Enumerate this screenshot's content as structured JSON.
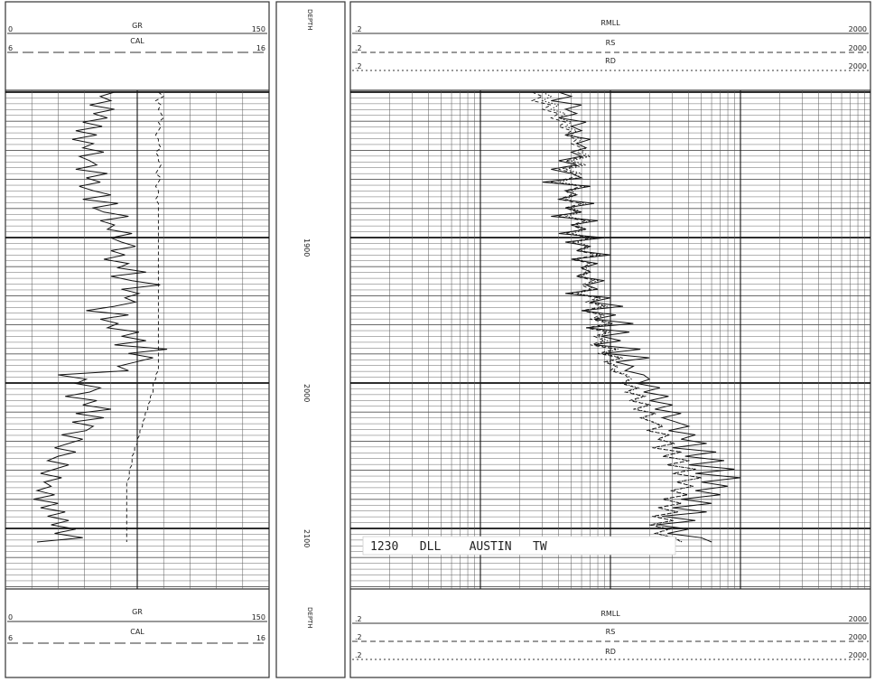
{
  "chart_data": {
    "type": "line",
    "depth_track": {
      "header_label": "DEPTH",
      "footer_label": "DEPTH",
      "depth_labels": [
        "1900",
        "2000",
        "2100"
      ]
    },
    "tracks": [
      {
        "name": "track-1",
        "scale": "linear",
        "curves": [
          {
            "name": "GR",
            "min_label": "0",
            "max_label": "150",
            "line_style": "solid",
            "values": [
              62,
              54,
              60,
              48,
              62,
              50,
              58,
              44,
              55,
              40,
              52,
              38,
              50,
              44,
              56,
              42,
              48,
              52,
              40,
              58,
              46,
              54,
              42,
              50,
              60,
              44,
              64,
              50,
              56,
              70,
              54,
              62,
              58,
              72,
              60,
              66,
              74,
              60,
              68,
              56,
              70,
              64,
              80,
              60,
              72,
              88,
              66,
              76,
              68,
              74,
              62,
              46,
              70,
              54,
              64,
              58,
              76,
              66,
              80,
              62,
              92,
              70,
              84,
              74,
              64,
              70,
              30,
              46,
              40,
              54,
              48,
              34,
              52,
              44,
              60,
              40,
              56,
              38,
              50,
              46,
              32,
              44,
              36,
              28,
              40,
              30,
              24,
              36,
              28,
              20,
              32,
              22,
              26,
              18,
              28,
              16,
              30,
              20,
              34,
              24,
              36,
              26,
              40,
              28,
              44,
              18
            ]
          },
          {
            "name": "CAL",
            "min_label": "6",
            "max_label": "16",
            "line_style": "dashed",
            "values": [
              11.8,
              12.0,
              11.7,
              11.9,
              11.8,
              11.9,
              12.0,
              11.8,
              11.9,
              11.8,
              11.7,
              11.8,
              11.8,
              11.9,
              11.7,
              11.8,
              11.8,
              11.9,
              11.8,
              11.7,
              11.9,
              11.8,
              11.7,
              11.8,
              11.8,
              11.7,
              11.8,
              11.8,
              11.8,
              11.8,
              11.8,
              11.8,
              11.8,
              11.8,
              11.8,
              11.8,
              11.8,
              11.8,
              11.8,
              11.8,
              11.8,
              11.8,
              11.8,
              11.8,
              11.8,
              11.8,
              11.8,
              11.8,
              11.8,
              11.8,
              11.8,
              11.8,
              11.8,
              11.8,
              11.8,
              11.8,
              11.8,
              11.8,
              11.8,
              11.8,
              11.8,
              11.8,
              11.8,
              11.8,
              11.8,
              11.8,
              11.7,
              11.7,
              11.6,
              11.6,
              11.6,
              11.5,
              11.5,
              11.4,
              11.4,
              11.3,
              11.3,
              11.2,
              11.2,
              11.1,
              11.1,
              11.0,
              11.0,
              10.9,
              10.9,
              10.8,
              10.8,
              10.8,
              10.7,
              10.7,
              10.7,
              10.6,
              10.6,
              10.6,
              10.6,
              10.6,
              10.6,
              10.6,
              10.6,
              10.6,
              10.6,
              10.6,
              10.6,
              10.6,
              10.6,
              10.6
            ]
          }
        ]
      },
      {
        "name": "track-2-3",
        "scale": "log",
        "decades": [
          0.2,
          2,
          20,
          200,
          2000
        ],
        "curves": [
          {
            "name": "RMLL",
            "min_label": ".2",
            "max_label": "2000",
            "line_style": "solid",
            "values": [
              8,
              10,
              7,
              12,
              9,
              11,
              8,
              13,
              10,
              12,
              9,
              14,
              11,
              13,
              10,
              12,
              8,
              11,
              7,
              10,
              12,
              6,
              14,
              9,
              11,
              8,
              15,
              9,
              12,
              7,
              16,
              10,
              13,
              8,
              18,
              9,
              14,
              11,
              20,
              10,
              16,
              12,
              14,
              11,
              18,
              13,
              16,
              9,
              20,
              14,
              25,
              12,
              22,
              15,
              30,
              13,
              28,
              17,
              24,
              15,
              34,
              18,
              40,
              22,
              30,
              26,
              36,
              40,
              32,
              48,
              36,
              56,
              40,
              60,
              44,
              70,
              50,
              64,
              80,
              56,
              90,
              70,
              110,
              60,
              130,
              75,
              150,
              80,
              180,
              90,
              200,
              100,
              160,
              90,
              140,
              70,
              120,
              60,
              110,
              50,
              90,
              45,
              80,
              55,
              100,
              120
            ]
          },
          {
            "name": "RS",
            "min_label": ".2",
            "max_label": "2000",
            "line_style": "dashed",
            "values": [
              5,
              6,
              5,
              7,
              6,
              8,
              7,
              9,
              8,
              10,
              9,
              11,
              10,
              12,
              11,
              13,
              9,
              12,
              8,
              11,
              10,
              7,
              12,
              9,
              10,
              8,
              12,
              9,
              11,
              8,
              13,
              10,
              12,
              9,
              14,
              10,
              13,
              11,
              16,
              10,
              14,
              12,
              13,
              11,
              15,
              12,
              14,
              10,
              16,
              13,
              18,
              12,
              17,
              14,
              20,
              13,
              19,
              15,
              18,
              14,
              22,
              16,
              24,
              18,
              22,
              20,
              26,
              28,
              24,
              32,
              26,
              36,
              28,
              40,
              30,
              44,
              34,
              42,
              50,
              38,
              56,
              46,
              62,
              42,
              70,
              50,
              80,
              54,
              90,
              60,
              100,
              64,
              86,
              58,
              78,
              50,
              70,
              46,
              66,
              42,
              60,
              40,
              56,
              44,
              62,
              70
            ]
          },
          {
            "name": "RD",
            "min_label": ".2",
            "max_label": "2000",
            "line_style": "dotted",
            "values": [
              6,
              7,
              6,
              8,
              7,
              9,
              8,
              10,
              9,
              11,
              10,
              12,
              11,
              13,
              12,
              14,
              10,
              13,
              9,
              12,
              11,
              8,
              13,
              10,
              11,
              9,
              13,
              10,
              12,
              9,
              14,
              11,
              13,
              10,
              15,
              11,
              14,
              12,
              17,
              11,
              15,
              13,
              14,
              12,
              16,
              13,
              15,
              11,
              17,
              14,
              19,
              13,
              18,
              15,
              21,
              14,
              20,
              16,
              19,
              15,
              23,
              17,
              25,
              19,
              23,
              21,
              27,
              29,
              25,
              33,
              27,
              37,
              29,
              41,
              31,
              45,
              35,
              43,
              51,
              39,
              57,
              47,
              63,
              43,
              71,
              51,
              81,
              55,
              91,
              61,
              101,
              65,
              87,
              59,
              79,
              51,
              71,
              47,
              67,
              43,
              61,
              41,
              57,
              45,
              63,
              71
            ]
          }
        ]
      }
    ],
    "annotation": "1230   DLL    AUSTIN   TW",
    "grid": true
  }
}
